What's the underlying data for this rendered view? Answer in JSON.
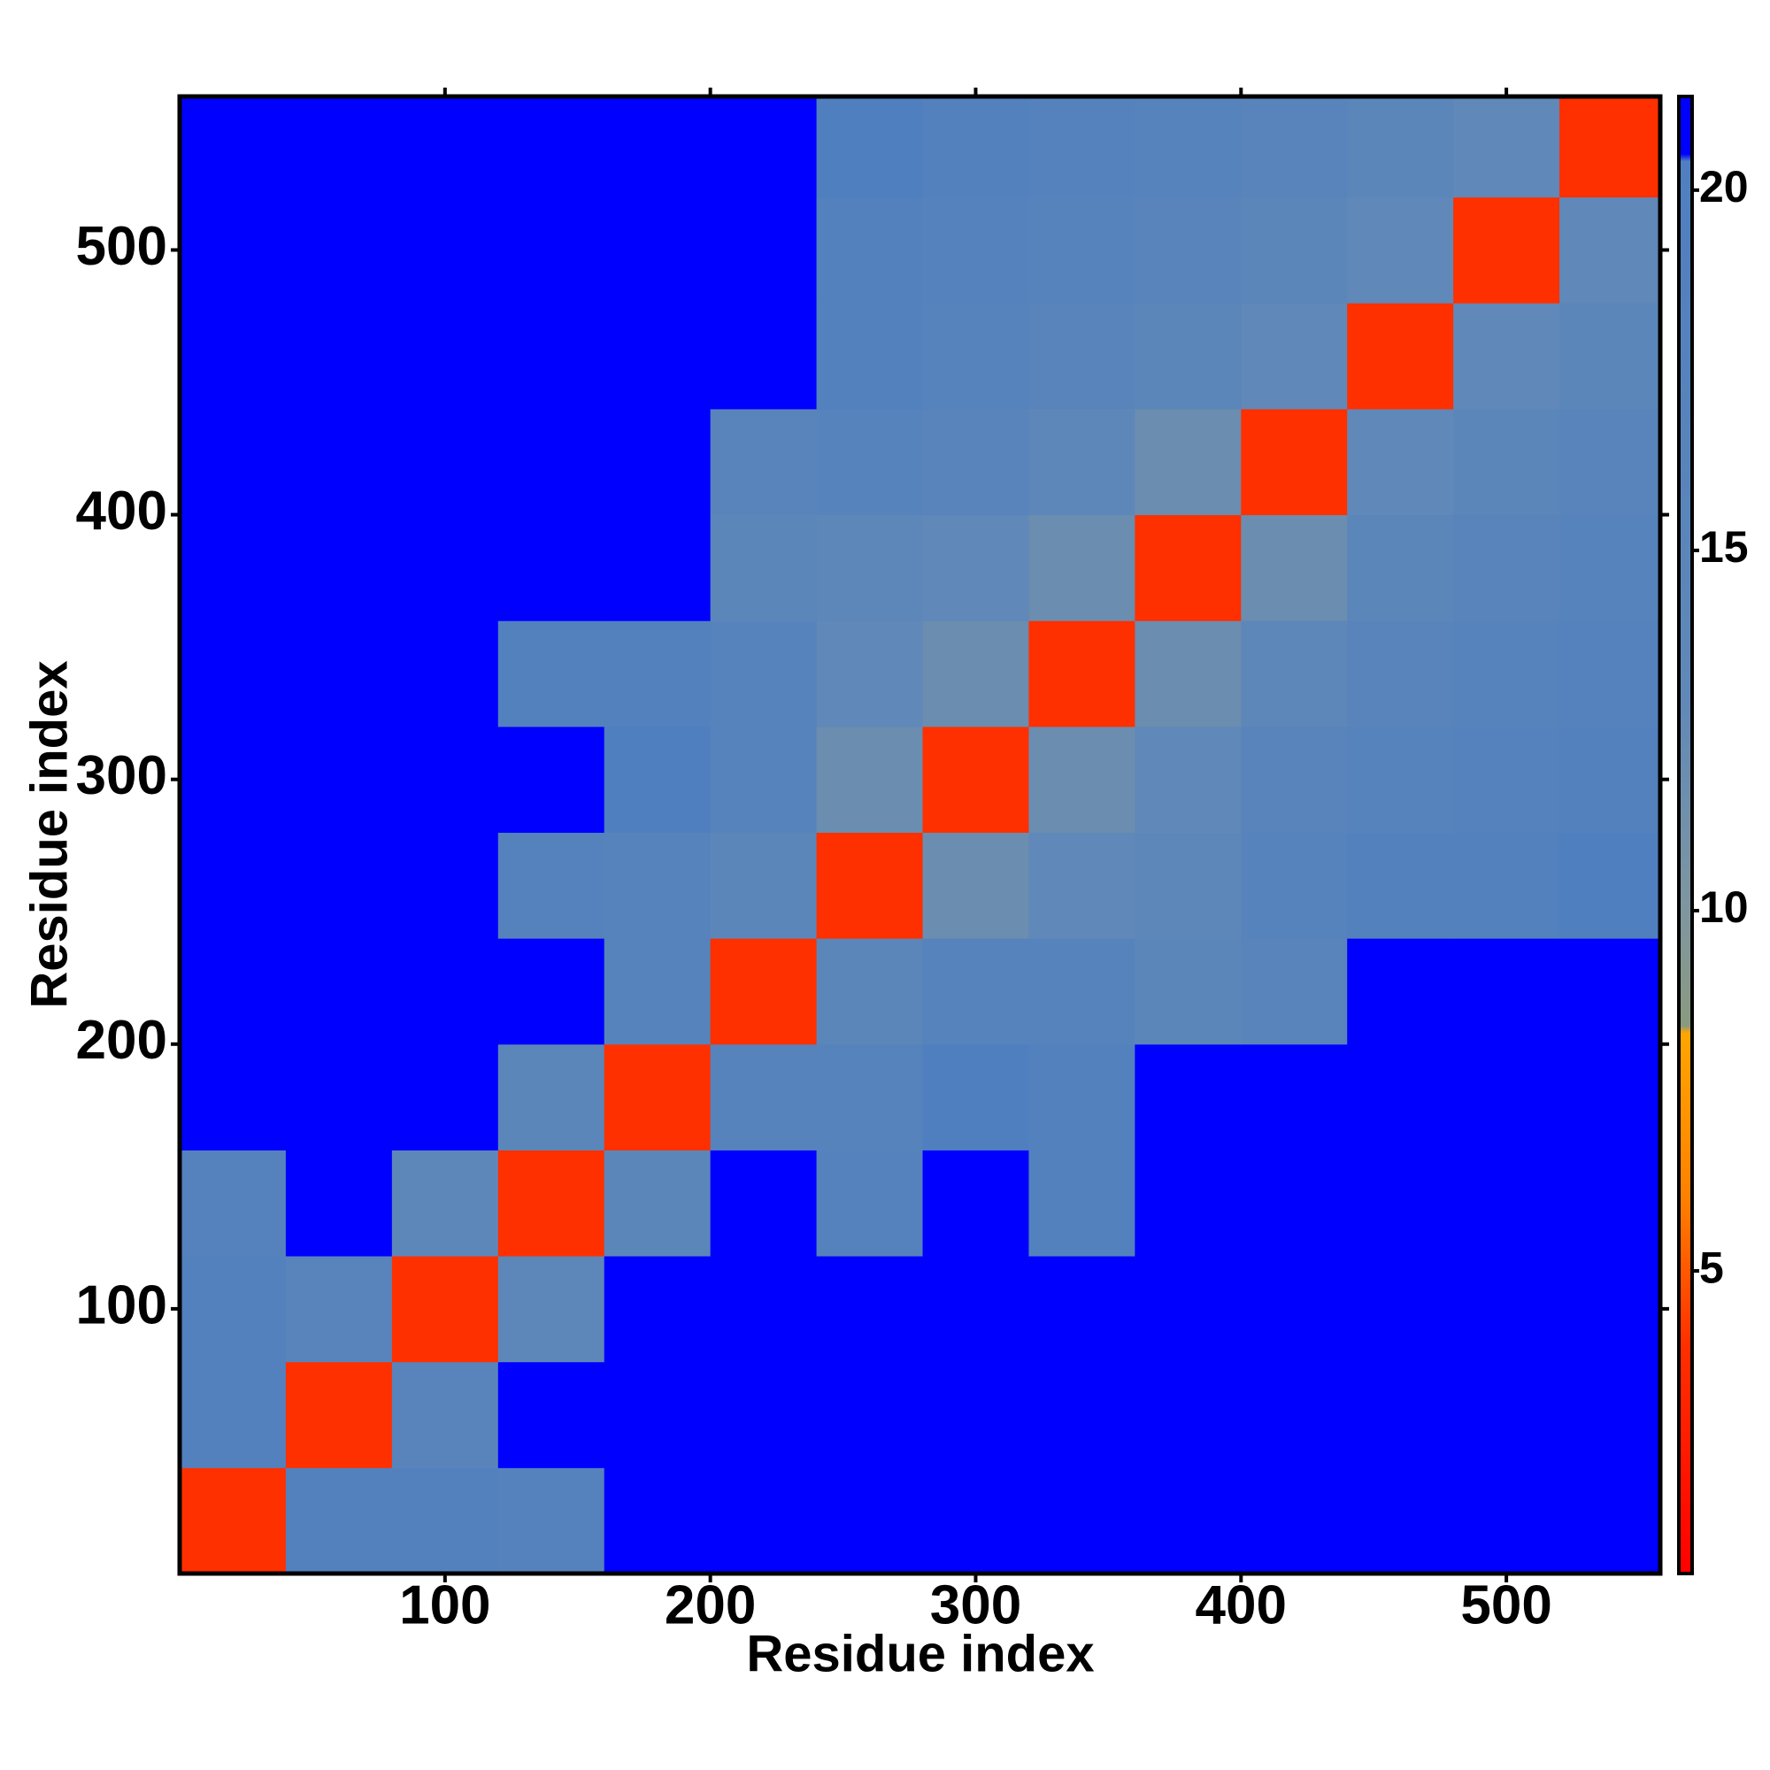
{
  "chart_data": {
    "type": "heatmap",
    "xlabel": "Residue index",
    "ylabel": "Residue index",
    "xbins": [
      0,
      40,
      80,
      120,
      160,
      200,
      240,
      280,
      320,
      360,
      400,
      440,
      480,
      520,
      560
    ],
    "ybins": [
      0,
      40,
      80,
      120,
      160,
      200,
      240,
      280,
      320,
      360,
      400,
      440,
      480,
      520,
      560
    ],
    "z": [
      [
        4,
        19,
        19,
        18,
        21,
        21,
        21,
        21,
        21,
        21,
        21,
        21,
        21,
        21
      ],
      [
        19,
        4,
        16,
        21,
        21,
        21,
        21,
        21,
        21,
        21,
        21,
        21,
        21,
        21
      ],
      [
        19,
        16,
        4,
        14,
        21,
        21,
        21,
        21,
        21,
        21,
        21,
        21,
        21,
        21
      ],
      [
        18,
        21,
        14,
        4,
        15,
        21,
        18,
        21,
        19,
        21,
        21,
        21,
        21,
        21
      ],
      [
        21,
        21,
        21,
        15,
        4,
        17,
        17,
        20,
        19,
        21,
        21,
        21,
        21,
        21
      ],
      [
        21,
        21,
        21,
        21,
        17,
        4,
        15,
        17,
        17,
        15,
        16,
        21,
        21,
        21
      ],
      [
        21,
        21,
        21,
        18,
        17,
        15,
        4,
        12,
        13,
        14,
        17,
        19,
        19,
        20
      ],
      [
        21,
        21,
        21,
        21,
        20,
        17,
        12,
        4,
        12,
        13,
        16,
        17,
        18,
        19
      ],
      [
        21,
        21,
        21,
        19,
        19,
        17,
        13,
        12,
        4,
        12,
        14,
        16,
        17,
        18
      ],
      [
        21,
        21,
        21,
        21,
        21,
        15,
        14,
        13,
        12,
        4,
        12,
        15,
        16,
        17
      ],
      [
        21,
        21,
        21,
        21,
        21,
        16,
        17,
        16,
        14,
        12,
        4,
        13,
        15,
        16
      ],
      [
        21,
        21,
        21,
        21,
        21,
        21,
        19,
        17,
        16,
        15,
        13,
        4,
        13,
        15
      ],
      [
        21,
        21,
        21,
        21,
        21,
        21,
        19,
        18,
        17,
        16,
        15,
        13,
        4,
        13
      ],
      [
        21,
        21,
        21,
        21,
        21,
        21,
        20,
        19,
        18,
        17,
        16,
        15,
        13,
        4
      ]
    ],
    "xlim": [
      0,
      558
    ],
    "ylim": [
      0,
      558
    ],
    "xticks": [
      100,
      200,
      300,
      400,
      500
    ],
    "yticks": [
      100,
      200,
      300,
      400,
      500
    ],
    "colorbar": {
      "lim": [
        0.8,
        21.3
      ],
      "ticks": [
        5,
        10,
        15,
        20
      ]
    },
    "colorscale": [
      [
        0.8,
        "#ff0000"
      ],
      [
        4,
        "#ff3000"
      ],
      [
        6,
        "#ff8000"
      ],
      [
        8.3,
        "#ffa500"
      ],
      [
        8.4,
        "#8a9a80"
      ],
      [
        10,
        "#7f96a0"
      ],
      [
        13,
        "#6088b8"
      ],
      [
        20.4,
        "#4f7fc0"
      ],
      [
        20.5,
        "#0000ff"
      ],
      [
        21.3,
        "#0000ff"
      ]
    ]
  }
}
